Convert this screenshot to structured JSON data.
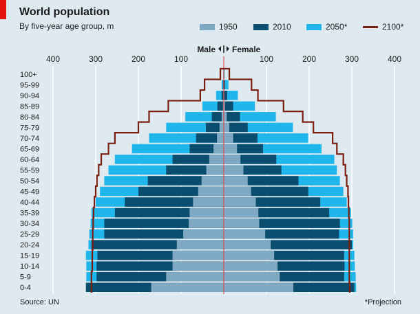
{
  "header": {
    "title": "World population",
    "subtitle": "By five-year age group, m"
  },
  "footer": {
    "source": "Source: UN",
    "note": "*Projection"
  },
  "axis_center": {
    "left": "Male",
    "right": "Female"
  },
  "colors": {
    "1950": "#7fa8c2",
    "2010": "#0b4d6e",
    "2050": "#1fb6ec",
    "2100": "#7a1f0f",
    "background": "#dfe9f0",
    "accent": "#e3120b"
  },
  "chart_data": {
    "type": "bar",
    "subtype": "population-pyramid",
    "title": "World population",
    "subtitle": "By five-year age group, m",
    "xlabel": "",
    "ylabel": "",
    "x_ticks_left": [
      "400",
      "300",
      "200",
      "100"
    ],
    "x_ticks_right": [
      "100",
      "200",
      "300",
      "400"
    ],
    "x_tick_center": "0",
    "xlim": [
      -400,
      400
    ],
    "grid": true,
    "legend_position": "top",
    "categories": [
      "0-4",
      "5-9",
      "10-14",
      "15-19",
      "20-24",
      "25-29",
      "30-34",
      "35-39",
      "40-44",
      "45-49",
      "50-54",
      "55-59",
      "60-64",
      "65-69",
      "70-74",
      "75-79",
      "80-84",
      "85-89",
      "90-94",
      "95-99",
      "100+"
    ],
    "series": [
      {
        "name": "1950",
        "style": "bar",
        "male": [
          170,
          135,
          120,
          120,
          110,
          95,
          82,
          80,
          72,
          60,
          52,
          41,
          34,
          24,
          16,
          10,
          5,
          2,
          1,
          0,
          0
        ],
        "female": [
          163,
          131,
          126,
          118,
          110,
          97,
          83,
          81,
          75,
          64,
          56,
          46,
          39,
          31,
          22,
          13,
          7,
          3,
          1,
          0,
          0
        ]
      },
      {
        "name": "2010",
        "style": "bar",
        "male": [
          323,
          298,
          298,
          296,
          310,
          280,
          280,
          255,
          232,
          200,
          178,
          135,
          120,
          80,
          65,
          42,
          28,
          15,
          5,
          2,
          1
        ],
        "female": [
          306,
          282,
          283,
          282,
          300,
          270,
          272,
          247,
          226,
          198,
          175,
          135,
          123,
          92,
          79,
          56,
          38,
          22,
          8,
          3,
          1
        ]
      },
      {
        "name": "2050*",
        "style": "bar",
        "male": [
          322,
          322,
          322,
          323,
          317,
          315,
          312,
          310,
          300,
          290,
          280,
          270,
          255,
          215,
          175,
          135,
          90,
          50,
          18,
          5,
          1
        ],
        "female": [
          310,
          309,
          307,
          306,
          303,
          303,
          301,
          298,
          288,
          280,
          272,
          265,
          259,
          229,
          198,
          162,
          122,
          73,
          33,
          11,
          2
        ]
      },
      {
        "name": "2100*",
        "style": "line",
        "male": [
          310,
          310,
          308,
          308,
          307,
          307,
          306,
          305,
          303,
          300,
          297,
          293,
          287,
          270,
          255,
          200,
          175,
          130,
          55,
          45,
          8
        ],
        "female": [
          295,
          294,
          294,
          294,
          294,
          294,
          294,
          293,
          292,
          291,
          288,
          285,
          280,
          265,
          255,
          210,
          185,
          140,
          80,
          65,
          13
        ]
      }
    ]
  }
}
